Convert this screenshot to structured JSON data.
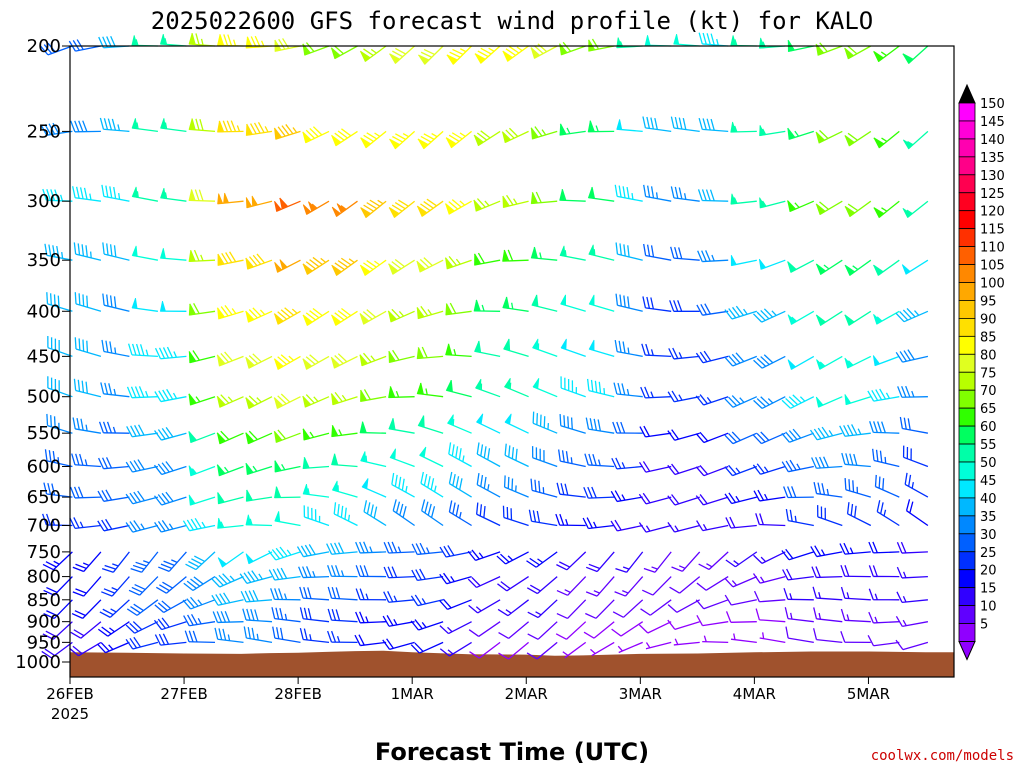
{
  "chart_data": {
    "type": "wind-barb-profile",
    "title": "2025022600 GFS forecast wind profile (kt) for KALO",
    "xlabel": "Forecast Time (UTC)",
    "x_ticks": [
      {
        "label": "26FEB",
        "sublabel": "2025",
        "hour": 0
      },
      {
        "label": "27FEB",
        "sublabel": "",
        "hour": 24
      },
      {
        "label": "28FEB",
        "sublabel": "",
        "hour": 48
      },
      {
        "label": "1MAR",
        "sublabel": "",
        "hour": 72
      },
      {
        "label": "2MAR",
        "sublabel": "",
        "hour": 96
      },
      {
        "label": "3MAR",
        "sublabel": "",
        "hour": 120
      },
      {
        "label": "4MAR",
        "sublabel": "",
        "hour": 144
      },
      {
        "label": "5MAR",
        "sublabel": "",
        "hour": 168
      }
    ],
    "x_range_hours": [
      0,
      186
    ],
    "y_ticks": [
      200,
      250,
      300,
      350,
      400,
      450,
      500,
      550,
      600,
      650,
      700,
      750,
      800,
      850,
      900,
      950,
      1000
    ],
    "y_range_hpa": [
      200,
      1040
    ],
    "y_scale": "log-pressure",
    "colorbar": {
      "labels": [
        150,
        145,
        140,
        135,
        130,
        125,
        120,
        115,
        110,
        105,
        100,
        95,
        90,
        85,
        80,
        75,
        70,
        65,
        60,
        55,
        50,
        45,
        40,
        35,
        30,
        25,
        20,
        15,
        10,
        5
      ],
      "colors": [
        "#ff00ff",
        "#ff00d8",
        "#ff00b0",
        "#ff0088",
        "#ff0050",
        "#ff0020",
        "#ff0000",
        "#ff3000",
        "#ff6000",
        "#ff8800",
        "#ffa800",
        "#ffc800",
        "#ffe000",
        "#ffff00",
        "#e0ff20",
        "#b8ff00",
        "#80ff00",
        "#30ff00",
        "#00ff60",
        "#00ffa8",
        "#00ffd8",
        "#00e8ff",
        "#00b8ff",
        "#0088ff",
        "#0060ff",
        "#0030ff",
        "#0000ff",
        "#3000ff",
        "#6000ff",
        "#9000ff"
      ],
      "top_arrow_color": "#000000",
      "bottom_arrow_color": "#9000ff"
    },
    "terrain": {
      "color": "#a0522d",
      "surface_pressure_hpa": [
        {
          "hour": 0,
          "p": 975
        },
        {
          "hour": 12,
          "p": 976
        },
        {
          "hour": 24,
          "p": 978
        },
        {
          "hour": 36,
          "p": 979
        },
        {
          "hour": 42,
          "p": 977
        },
        {
          "hour": 48,
          "p": 976
        },
        {
          "hour": 54,
          "p": 974
        },
        {
          "hour": 60,
          "p": 972
        },
        {
          "hour": 66,
          "p": 971
        },
        {
          "hour": 72,
          "p": 975
        },
        {
          "hour": 84,
          "p": 980
        },
        {
          "hour": 96,
          "p": 981
        },
        {
          "hour": 102,
          "p": 984
        },
        {
          "hour": 108,
          "p": 983
        },
        {
          "hour": 114,
          "p": 981
        },
        {
          "hour": 120,
          "p": 979
        },
        {
          "hour": 132,
          "p": 978
        },
        {
          "hour": 144,
          "p": 975
        },
        {
          "hour": 156,
          "p": 973
        },
        {
          "hour": 168,
          "p": 973
        },
        {
          "hour": 180,
          "p": 975
        },
        {
          "hour": 186,
          "p": 975
        }
      ]
    },
    "barb_levels_hpa": [
      200,
      250,
      300,
      350,
      400,
      450,
      500,
      550,
      600,
      650,
      700,
      750,
      800,
      850,
      900,
      950
    ],
    "barb_time_step_hours": 6,
    "wind_field_description_speed_kt": {
      "200": [
        30,
        40,
        55,
        75,
        85,
        80,
        70,
        75,
        80,
        85,
        85,
        80,
        70,
        55,
        50,
        45,
        55,
        60,
        70,
        65,
        60,
        55
      ],
      "300": [
        45,
        45,
        55,
        80,
        100,
        110,
        105,
        95,
        90,
        85,
        75,
        70,
        60,
        45,
        35,
        40,
        55,
        65,
        70,
        65,
        55,
        40
      ],
      "500": [
        40,
        35,
        45,
        65,
        75,
        80,
        75,
        70,
        65,
        60,
        55,
        50,
        45,
        35,
        25,
        25,
        35,
        45,
        50,
        45,
        35,
        25
      ],
      "850": [
        20,
        25,
        30,
        35,
        40,
        35,
        30,
        25,
        25,
        20,
        15,
        15,
        10,
        10,
        10,
        10,
        10,
        15,
        15,
        15,
        15,
        15
      ]
    }
  },
  "credit": "coolwx.com/models"
}
